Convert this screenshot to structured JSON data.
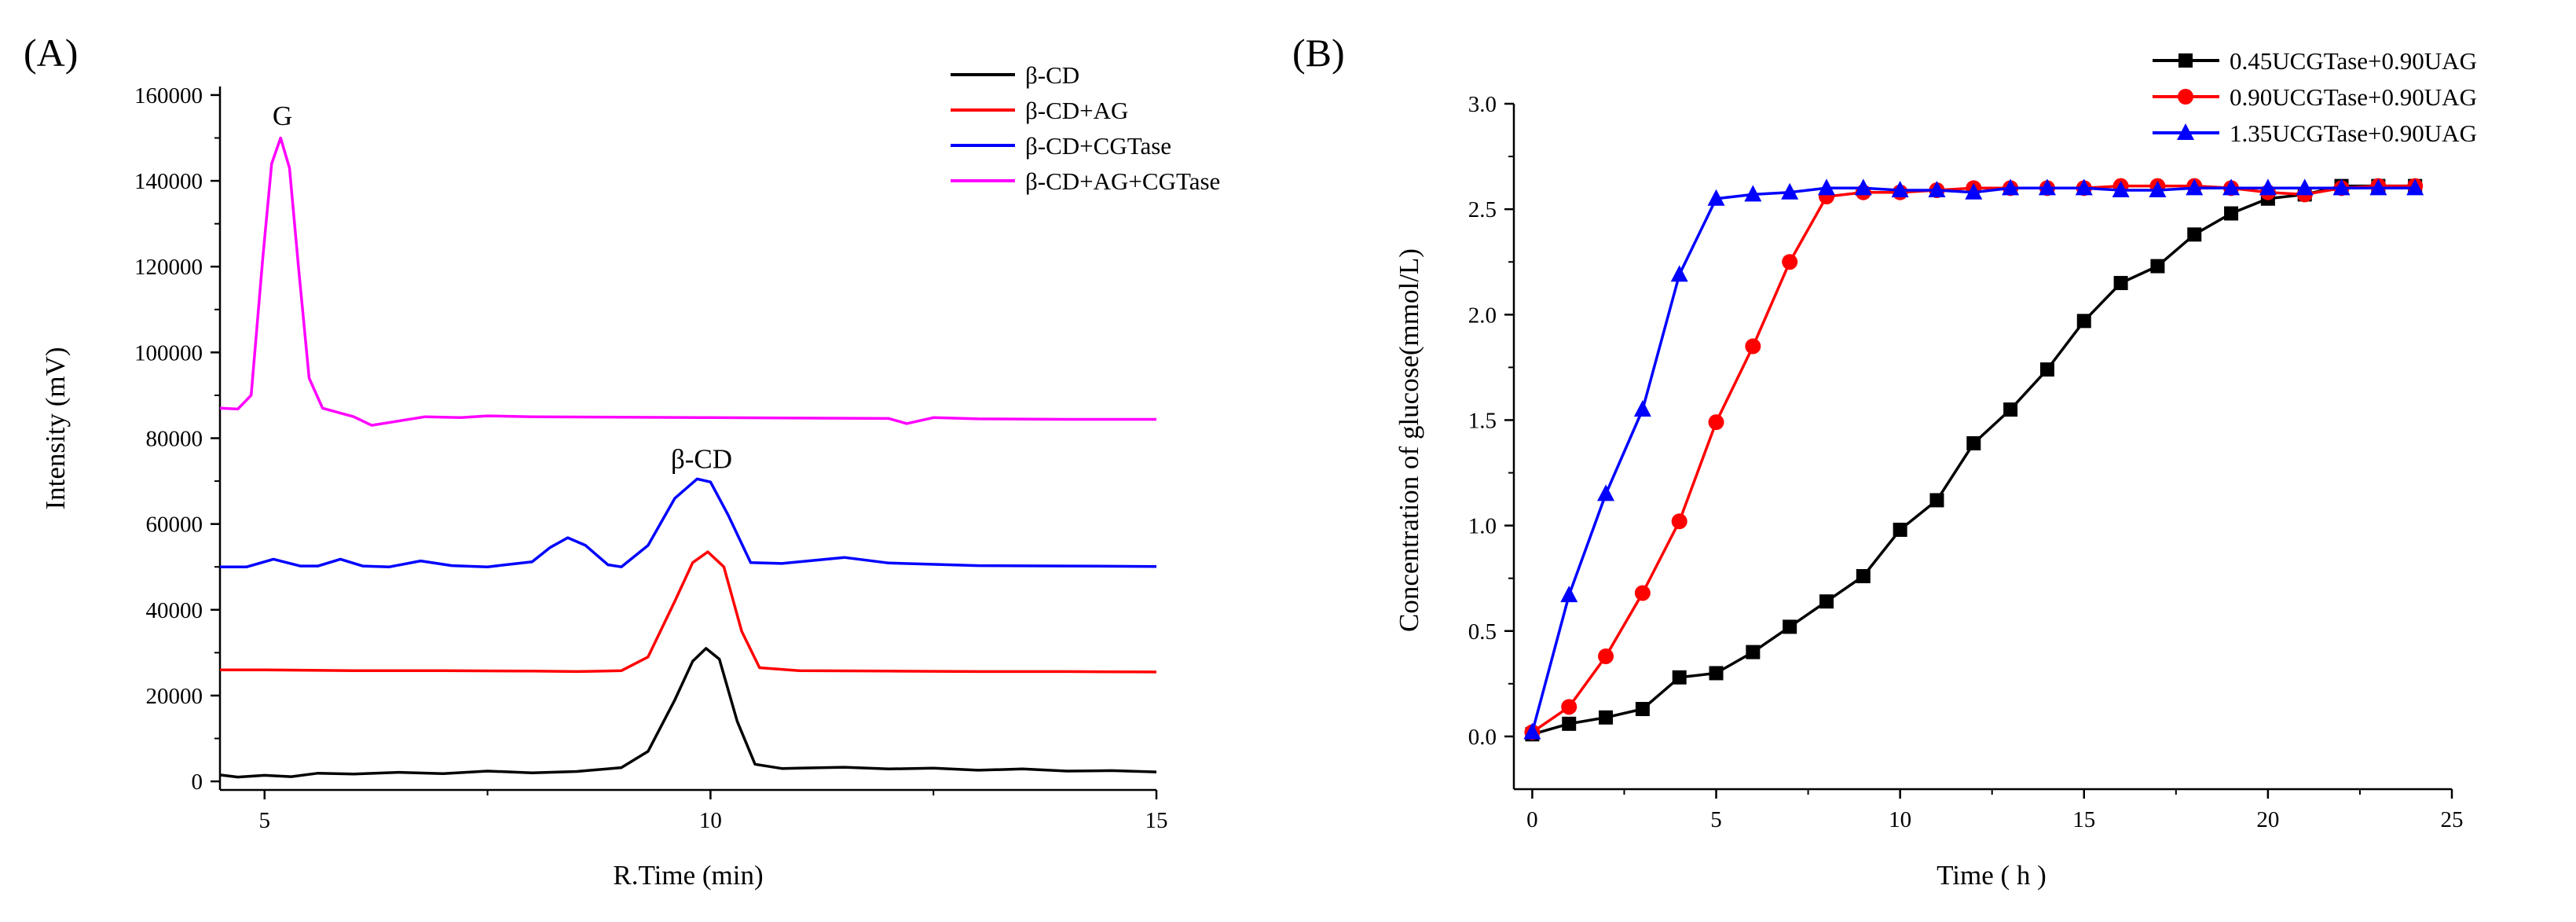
{
  "chart_data": [
    {
      "panel_label": "(A)",
      "type": "line",
      "xlabel": "R.Time (min)",
      "ylabel": "Intensity (mV)",
      "xlim": [
        4.5,
        15
      ],
      "ylim": [
        -2000,
        162000
      ],
      "x_ticks": [
        5,
        10,
        15
      ],
      "y_ticks": [
        0,
        20000,
        40000,
        60000,
        80000,
        100000,
        120000,
        140000,
        160000
      ],
      "grid": false,
      "legend_position": "top-right",
      "annotations": [
        {
          "text": "G",
          "x": 5.2,
          "y": 153000
        },
        {
          "text": "β-CD",
          "x": 9.9,
          "y": 73000
        }
      ],
      "series": [
        {
          "name": "β-CD",
          "color": "#000000",
          "points": [
            [
              4.5,
              1500
            ],
            [
              4.7,
              1000
            ],
            [
              5,
              1400
            ],
            [
              5.3,
              1100
            ],
            [
              5.6,
              1900
            ],
            [
              6,
              1700
            ],
            [
              6.5,
              2100
            ],
            [
              7,
              1800
            ],
            [
              7.5,
              2400
            ],
            [
              8,
              2000
            ],
            [
              8.5,
              2300
            ],
            [
              9,
              3200
            ],
            [
              9.3,
              7000
            ],
            [
              9.6,
              19000
            ],
            [
              9.8,
              28000
            ],
            [
              9.95,
              31000
            ],
            [
              10.1,
              28500
            ],
            [
              10.3,
              14000
            ],
            [
              10.5,
              4000
            ],
            [
              10.8,
              3000
            ],
            [
              11.5,
              3300
            ],
            [
              12,
              2900
            ],
            [
              12.5,
              3100
            ],
            [
              13,
              2600
            ],
            [
              13.5,
              2900
            ],
            [
              14,
              2400
            ],
            [
              14.5,
              2500
            ],
            [
              15,
              2200
            ]
          ]
        },
        {
          "name": "β-CD+AG",
          "color": "#ff0000",
          "points": [
            [
              4.5,
              26000
            ],
            [
              5,
              26000
            ],
            [
              6,
              25800
            ],
            [
              7,
              25800
            ],
            [
              8,
              25700
            ],
            [
              8.5,
              25600
            ],
            [
              9,
              25800
            ],
            [
              9.3,
              29000
            ],
            [
              9.6,
              42000
            ],
            [
              9.8,
              51000
            ],
            [
              9.97,
              53500
            ],
            [
              10.15,
              50000
            ],
            [
              10.35,
              35000
            ],
            [
              10.55,
              26500
            ],
            [
              11,
              25800
            ],
            [
              12,
              25700
            ],
            [
              13,
              25600
            ],
            [
              14,
              25600
            ],
            [
              15,
              25500
            ]
          ]
        },
        {
          "name": "β-CD+CGTase",
          "color": "#0000ff",
          "points": [
            [
              4.5,
              50000
            ],
            [
              4.8,
              50000
            ],
            [
              5.1,
              51800
            ],
            [
              5.4,
              50200
            ],
            [
              5.6,
              50200
            ],
            [
              5.85,
              51800
            ],
            [
              6.1,
              50200
            ],
            [
              6.4,
              50000
            ],
            [
              6.75,
              51400
            ],
            [
              7.1,
              50300
            ],
            [
              7.5,
              50000
            ],
            [
              8,
              51200
            ],
            [
              8.2,
              54500
            ],
            [
              8.4,
              56800
            ],
            [
              8.6,
              55000
            ],
            [
              8.85,
              50500
            ],
            [
              9,
              50000
            ],
            [
              9.3,
              55000
            ],
            [
              9.6,
              66000
            ],
            [
              9.85,
              70500
            ],
            [
              10,
              69800
            ],
            [
              10.2,
              62000
            ],
            [
              10.45,
              51000
            ],
            [
              10.8,
              50800
            ],
            [
              11.2,
              51600
            ],
            [
              11.5,
              52200
            ],
            [
              12,
              50900
            ],
            [
              13,
              50300
            ],
            [
              14,
              50200
            ],
            [
              15,
              50100
            ]
          ]
        },
        {
          "name": "β-CD+AG+CGTase",
          "color": "#ff00ff",
          "points": [
            [
              4.5,
              87000
            ],
            [
              4.7,
              86800
            ],
            [
              4.85,
              90000
            ],
            [
              4.98,
              122000
            ],
            [
              5.08,
              144000
            ],
            [
              5.18,
              150000
            ],
            [
              5.28,
              143000
            ],
            [
              5.38,
              120000
            ],
            [
              5.5,
              94000
            ],
            [
              5.65,
              87000
            ],
            [
              6,
              85000
            ],
            [
              6.2,
              83000
            ],
            [
              6.5,
              84000
            ],
            [
              6.8,
              85000
            ],
            [
              7.2,
              84800
            ],
            [
              7.5,
              85200
            ],
            [
              8,
              85000
            ],
            [
              9,
              84900
            ],
            [
              10,
              84800
            ],
            [
              11,
              84700
            ],
            [
              12,
              84600
            ],
            [
              12.2,
              83400
            ],
            [
              12.5,
              84800
            ],
            [
              13,
              84500
            ],
            [
              14,
              84400
            ],
            [
              15,
              84400
            ]
          ]
        }
      ]
    },
    {
      "panel_label": "(B)",
      "type": "line",
      "xlabel": "Time ( h )",
      "ylabel": "Concentration of glucose(mmol/L)",
      "xlim": [
        -0.5,
        25
      ],
      "ylim": [
        -0.25,
        3.0
      ],
      "x_ticks": [
        0,
        5,
        10,
        15,
        20,
        25
      ],
      "y_ticks": [
        0.0,
        0.5,
        1.0,
        1.5,
        2.0,
        2.5,
        3.0
      ],
      "grid": false,
      "legend_position": "top-right",
      "series": [
        {
          "name": "0.45UCGTase+0.90UAG",
          "color": "#000000",
          "marker": "square",
          "x": [
            0,
            1,
            2,
            3,
            4,
            5,
            6,
            7,
            8,
            9,
            10,
            11,
            12,
            13,
            14,
            15,
            16,
            17,
            18,
            19,
            20,
            21,
            22,
            23,
            24
          ],
          "y": [
            0.01,
            0.06,
            0.09,
            0.13,
            0.28,
            0.3,
            0.4,
            0.52,
            0.64,
            0.76,
            0.98,
            1.12,
            1.39,
            1.55,
            1.74,
            1.97,
            2.15,
            2.23,
            2.38,
            2.48,
            2.55,
            2.57,
            2.61,
            2.61,
            2.61
          ]
        },
        {
          "name": "0.90UCGTase+0.90UAG",
          "color": "#ff0000",
          "marker": "circle",
          "x": [
            0,
            1,
            2,
            3,
            4,
            5,
            6,
            7,
            8,
            9,
            10,
            11,
            12,
            13,
            14,
            15,
            16,
            17,
            18,
            19,
            20,
            21,
            22,
            23,
            24
          ],
          "y": [
            0.02,
            0.14,
            0.38,
            0.68,
            1.02,
            1.49,
            1.85,
            2.25,
            2.56,
            2.58,
            2.58,
            2.59,
            2.6,
            2.6,
            2.6,
            2.6,
            2.61,
            2.61,
            2.61,
            2.6,
            2.58,
            2.57,
            2.6,
            2.61,
            2.61
          ]
        },
        {
          "name": "1.35UCGTase+0.90UAG",
          "color": "#0000ff",
          "marker": "triangle",
          "x": [
            0,
            1,
            2,
            3,
            4,
            5,
            6,
            7,
            8,
            9,
            10,
            11,
            12,
            13,
            14,
            15,
            16,
            17,
            18,
            19,
            20,
            21,
            22,
            23,
            24
          ],
          "y": [
            0.02,
            0.67,
            1.15,
            1.55,
            2.19,
            2.55,
            2.57,
            2.58,
            2.6,
            2.6,
            2.59,
            2.59,
            2.58,
            2.6,
            2.6,
            2.6,
            2.59,
            2.59,
            2.6,
            2.6,
            2.6,
            2.6,
            2.6,
            2.6,
            2.6
          ]
        }
      ]
    }
  ]
}
